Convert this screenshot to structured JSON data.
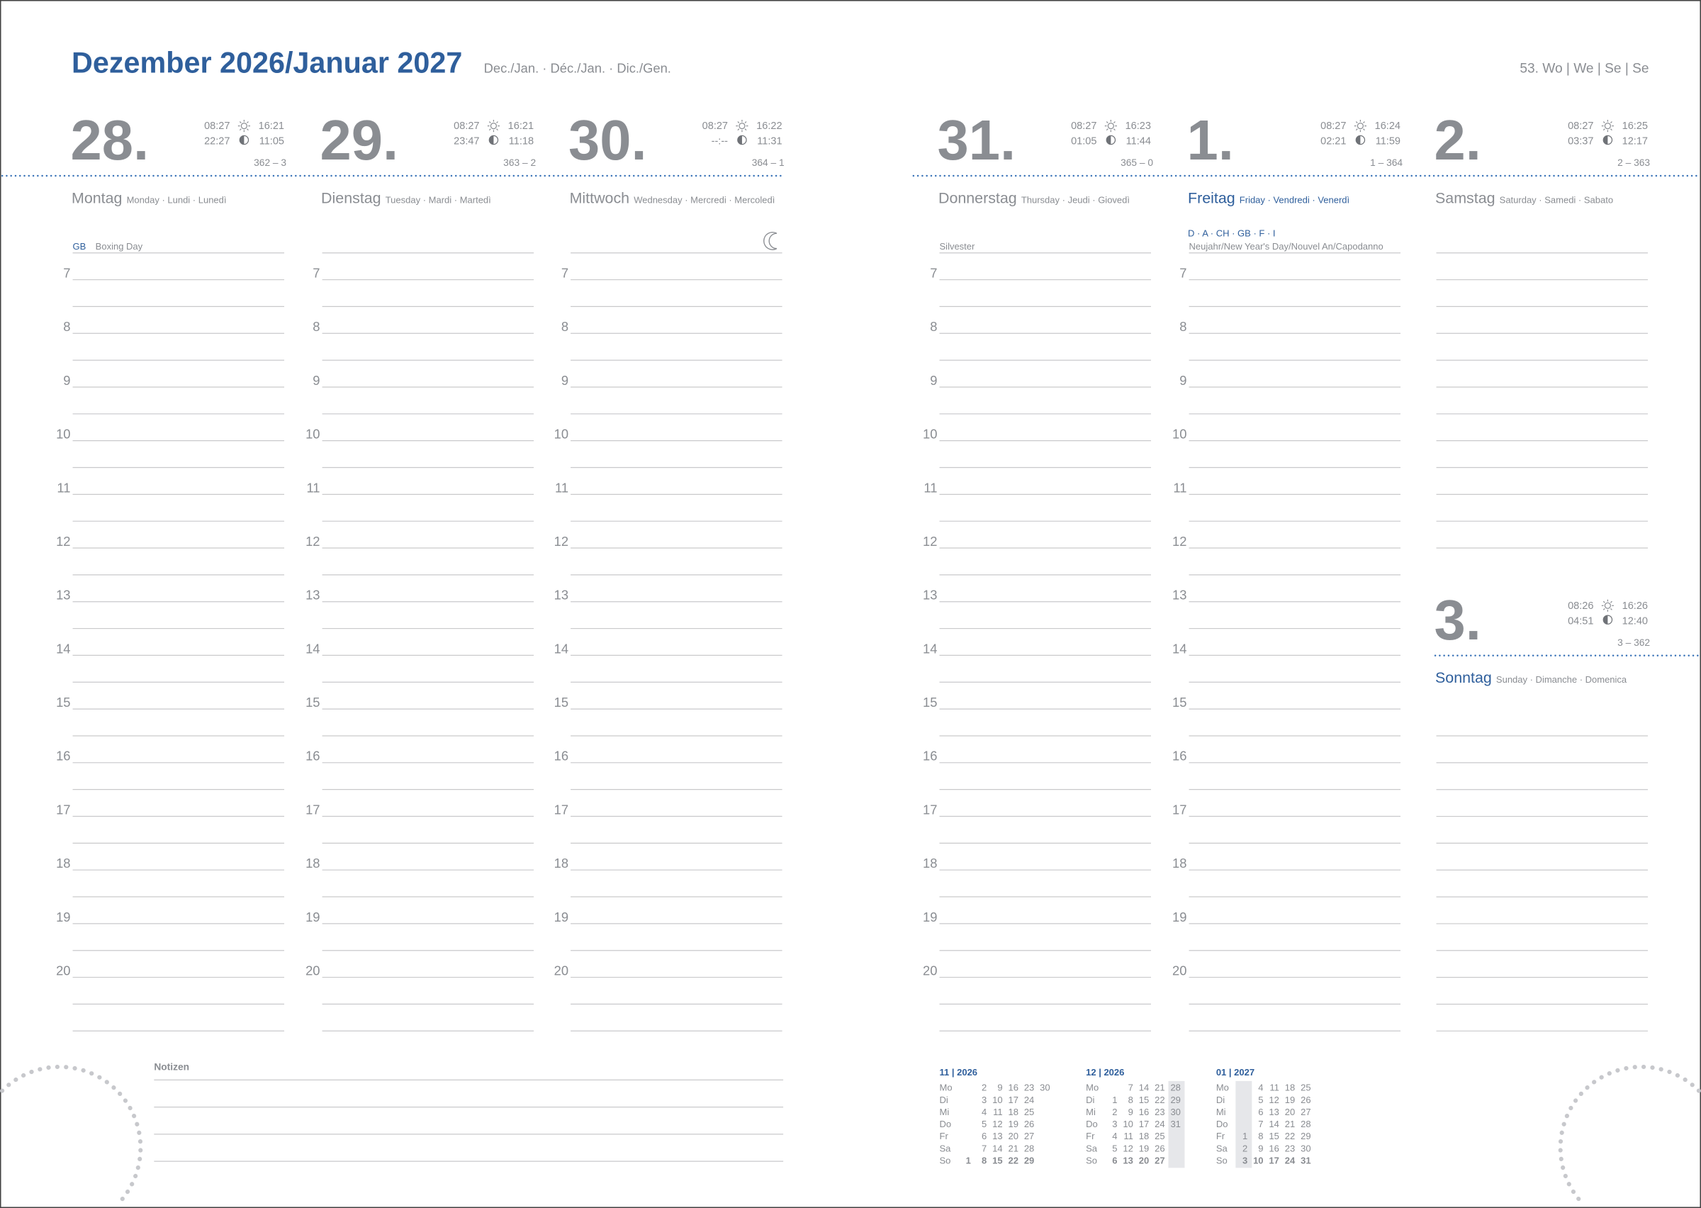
{
  "header": {
    "title": "Dezember 2026/Januar 2027",
    "subtitle": "Dec./Jan. · Déc./Jan. · Dic./Gen.",
    "week": "53. Wo | We | Se | Se"
  },
  "hours": [
    "7",
    "8",
    "9",
    "10",
    "11",
    "12",
    "13",
    "14",
    "15",
    "16",
    "17",
    "18",
    "19",
    "20"
  ],
  "days": [
    {
      "date": "28.",
      "sunrise": "08:27",
      "sunset": "16:21",
      "moonrise": "22:27",
      "moonset": "11:05",
      "day_count": "362 – 3",
      "name": "Montag",
      "translations": "Monday · Lundi · Lunedì",
      "note_tag": "GB",
      "note": "Boxing Day"
    },
    {
      "date": "29.",
      "sunrise": "08:27",
      "sunset": "16:21",
      "moonrise": "23:47",
      "moonset": "11:18",
      "day_count": "363 – 2",
      "name": "Dienstag",
      "translations": "Tuesday · Mardi · Martedì"
    },
    {
      "date": "30.",
      "sunrise": "08:27",
      "sunset": "16:22",
      "moonrise": "--:--",
      "moonset": "11:31",
      "day_count": "364 – 1",
      "name": "Mittwoch",
      "translations": "Wednesday · Mercredi · Mercoledì"
    },
    {
      "date": "31.",
      "sunrise": "08:27",
      "sunset": "16:23",
      "moonrise": "01:05",
      "moonset": "11:44",
      "day_count": "365 – 0",
      "name": "Donnerstag",
      "translations": "Thursday · Jeudi · Giovedì",
      "note": "Silvester"
    },
    {
      "date": "1.",
      "sunrise": "08:27",
      "sunset": "16:24",
      "moonrise": "02:21",
      "moonset": "11:59",
      "day_count": "1 – 364",
      "name": "Freitag",
      "translations": "Friday · Vendredi · Venerdì",
      "note_tag": "D · A · CH · GB · F · I",
      "note": "Neujahr/New Year's Day/Nouvel An/Capodanno"
    },
    {
      "date": "2.",
      "sunrise": "08:27",
      "sunset": "16:25",
      "moonrise": "03:37",
      "moonset": "12:17",
      "day_count": "2 – 363",
      "name": "Samstag",
      "translations": "Saturday · Samedi · Sabato"
    },
    {
      "date": "3.",
      "sunrise": "08:26",
      "sunset": "16:26",
      "moonrise": "04:51",
      "moonset": "12:40",
      "day_count": "3 – 362",
      "name": "Sonntag",
      "translations": "Sunday · Dimanche · Domenica"
    }
  ],
  "notes_label": "Notizen",
  "mini_calendars": [
    {
      "title": "11 | 2026",
      "rows": [
        {
          "label": "Mo",
          "days": [
            null,
            2,
            9,
            16,
            23,
            30
          ]
        },
        {
          "label": "Di",
          "days": [
            null,
            3,
            10,
            17,
            24,
            null
          ]
        },
        {
          "label": "Mi",
          "days": [
            null,
            4,
            11,
            18,
            25,
            null
          ]
        },
        {
          "label": "Do",
          "days": [
            null,
            5,
            12,
            19,
            26,
            null
          ]
        },
        {
          "label": "Fr",
          "days": [
            null,
            6,
            13,
            20,
            27,
            null
          ]
        },
        {
          "label": "Sa",
          "days": [
            null,
            7,
            14,
            21,
            28,
            null
          ]
        },
        {
          "label": "So",
          "days": [
            1,
            8,
            15,
            22,
            29,
            null
          ]
        }
      ]
    },
    {
      "title": "12 | 2026",
      "rows": [
        {
          "label": "Mo",
          "days": [
            null,
            7,
            14,
            21,
            28
          ]
        },
        {
          "label": "Di",
          "days": [
            1,
            8,
            15,
            22,
            29
          ]
        },
        {
          "label": "Mi",
          "days": [
            2,
            9,
            16,
            23,
            30
          ]
        },
        {
          "label": "Do",
          "days": [
            3,
            10,
            17,
            24,
            31
          ]
        },
        {
          "label": "Fr",
          "days": [
            4,
            11,
            18,
            25,
            null
          ]
        },
        {
          "label": "Sa",
          "days": [
            5,
            12,
            19,
            26,
            null
          ]
        },
        {
          "label": "So",
          "days": [
            6,
            13,
            20,
            27,
            null
          ]
        }
      ]
    },
    {
      "title": "01 | 2027",
      "rows": [
        {
          "label": "Mo",
          "days": [
            null,
            4,
            11,
            18,
            25
          ]
        },
        {
          "label": "Di",
          "days": [
            null,
            5,
            12,
            19,
            26
          ]
        },
        {
          "label": "Mi",
          "days": [
            null,
            6,
            13,
            20,
            27
          ]
        },
        {
          "label": "Do",
          "days": [
            null,
            7,
            14,
            21,
            28
          ]
        },
        {
          "label": "Fr",
          "days": [
            1,
            8,
            15,
            22,
            29
          ]
        },
        {
          "label": "Sa",
          "days": [
            2,
            9,
            16,
            23,
            30
          ]
        },
        {
          "label": "So",
          "days": [
            3,
            10,
            17,
            24,
            31
          ]
        }
      ]
    }
  ]
}
